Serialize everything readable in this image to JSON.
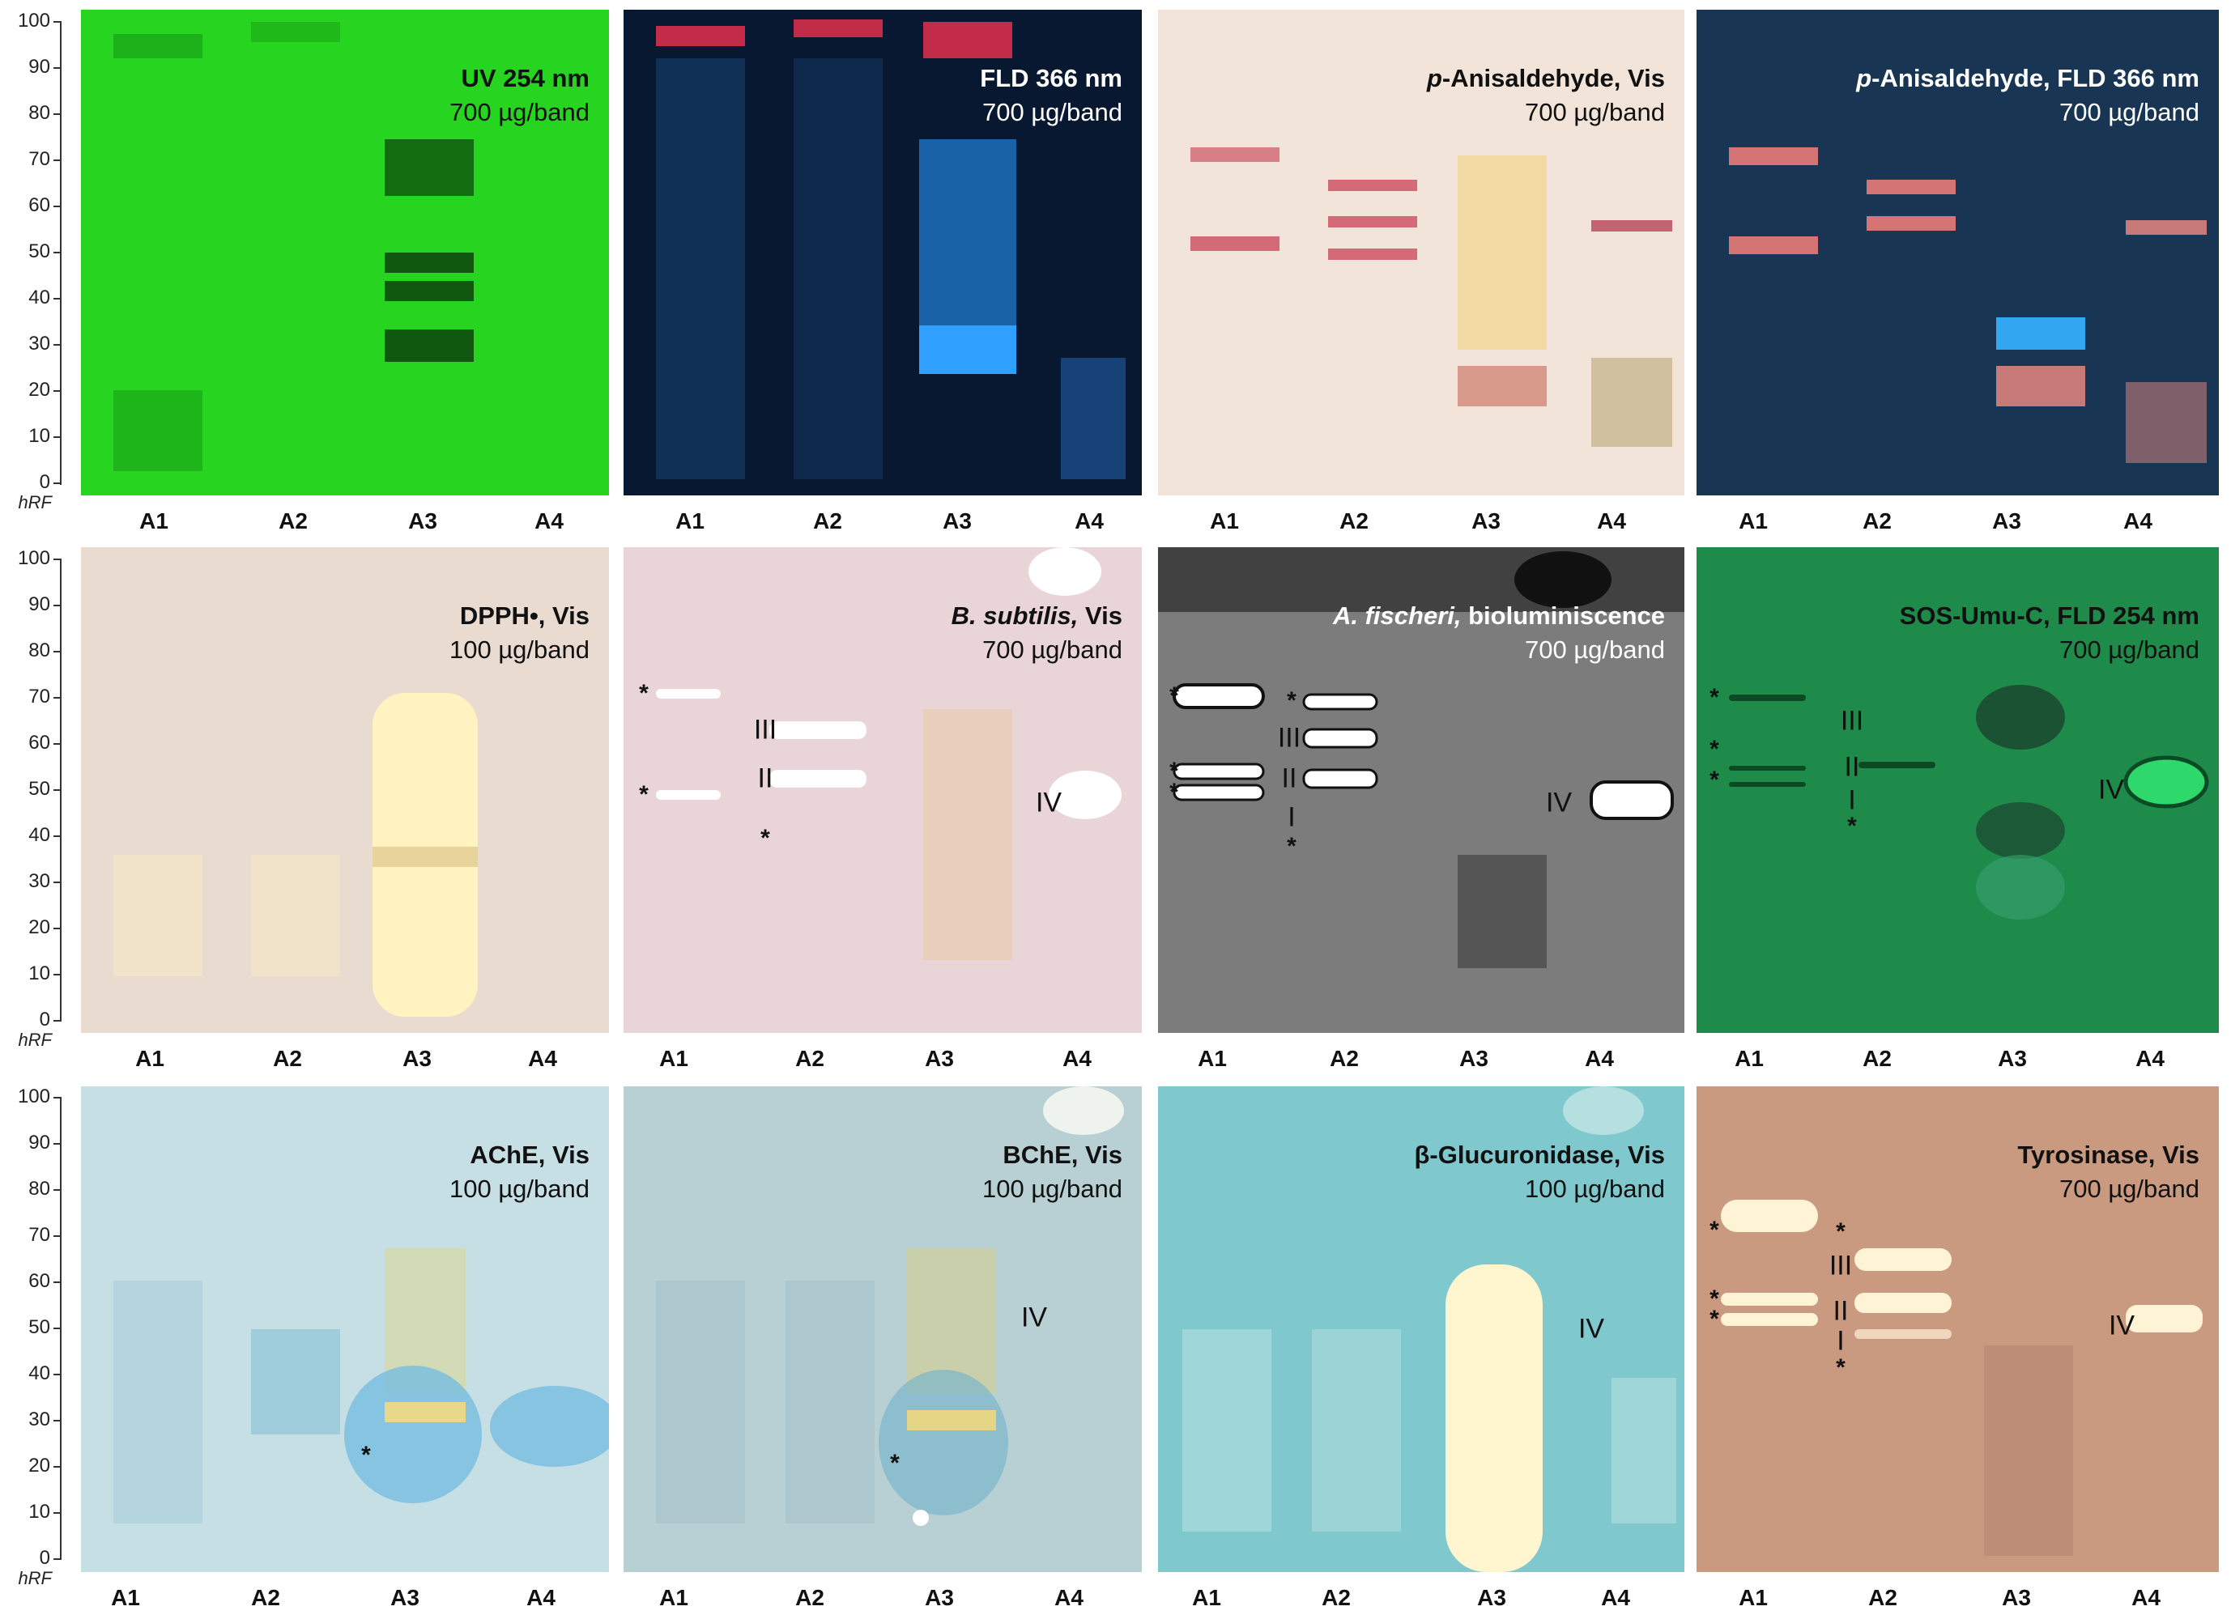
{
  "axis": {
    "ticks": [
      "100",
      "90",
      "80",
      "70",
      "60",
      "50",
      "40",
      "30",
      "20",
      "10",
      "0"
    ],
    "unit_label": "hRF"
  },
  "lanes": [
    "A1",
    "A2",
    "A3",
    "A4"
  ],
  "plates": [
    {
      "id": "uv254",
      "title": "UV 254 nm",
      "subtitle": "700 µg/band",
      "color": "#22d31c",
      "text_color": "#111111"
    },
    {
      "id": "fld366",
      "title": "FLD 366 nm",
      "subtitle": "700 µg/band",
      "color": "#07162a",
      "text_color": "#ffffff"
    },
    {
      "id": "anis_vis",
      "title_italic": "p",
      "title": "-Anisaldehyde, Vis",
      "subtitle": "700 µg/band",
      "color": "#f1e3d6",
      "text_color": "#111111"
    },
    {
      "id": "anis_fld",
      "title_italic": "p",
      "title": "-Anisaldehyde, FLD 366 nm",
      "subtitle": "700 µg/band",
      "color": "#173552",
      "text_color": "#ffffff"
    },
    {
      "id": "dpph",
      "title": "DPPH•, Vis",
      "subtitle": "100 µg/band",
      "color": "#e9d7cc",
      "text_color": "#111111"
    },
    {
      "id": "bsub",
      "title_italic": "B. subtilis,",
      "title": " Vis",
      "subtitle": "700 µg/band",
      "color": "#e8d4d6",
      "text_color": "#111111"
    },
    {
      "id": "afisch",
      "title_italic": "A. fischeri,",
      "title": " bioluminiscence",
      "subtitle": "700 µg/band",
      "color": "#7c7c7c",
      "text_color": "#ffffff"
    },
    {
      "id": "sos",
      "title": "SOS-Umu-C, FLD 254 nm",
      "subtitle": "700 µg/band",
      "color": "#1e8a4a",
      "text_color": "#111111"
    },
    {
      "id": "ache",
      "title": "AChE, Vis",
      "subtitle": "100 µg/band",
      "color": "#c3dde3",
      "text_color": "#111111"
    },
    {
      "id": "bche",
      "title": "BChE, Vis",
      "subtitle": "100 µg/band",
      "color": "#b5ced2",
      "text_color": "#111111"
    },
    {
      "id": "bgluc",
      "title": "β-Glucuronidase, Vis",
      "subtitle": "100 µg/band",
      "color": "#7bc6cc",
      "text_color": "#111111"
    },
    {
      "id": "tyro",
      "title": "Tyrosinase, Vis",
      "subtitle": "700 µg/band",
      "color": "#c89a80",
      "text_color": "#111111"
    }
  ],
  "markers": {
    "bsub": [
      "*",
      "III",
      "II",
      "*",
      "*",
      "IV"
    ],
    "afisch": [
      "*",
      "*",
      "III",
      "*",
      "*",
      "II",
      "I",
      "*",
      "IV"
    ],
    "sos": [
      "*",
      "III",
      "*",
      "II",
      "*",
      "I",
      "*",
      "IV"
    ],
    "ache": [
      "*"
    ],
    "bche": [
      "IV",
      "*"
    ],
    "bgluc": [
      "IV"
    ],
    "tyro": [
      "*",
      "*",
      "III",
      "*",
      "*",
      "II",
      "I",
      "*",
      "IV"
    ]
  }
}
